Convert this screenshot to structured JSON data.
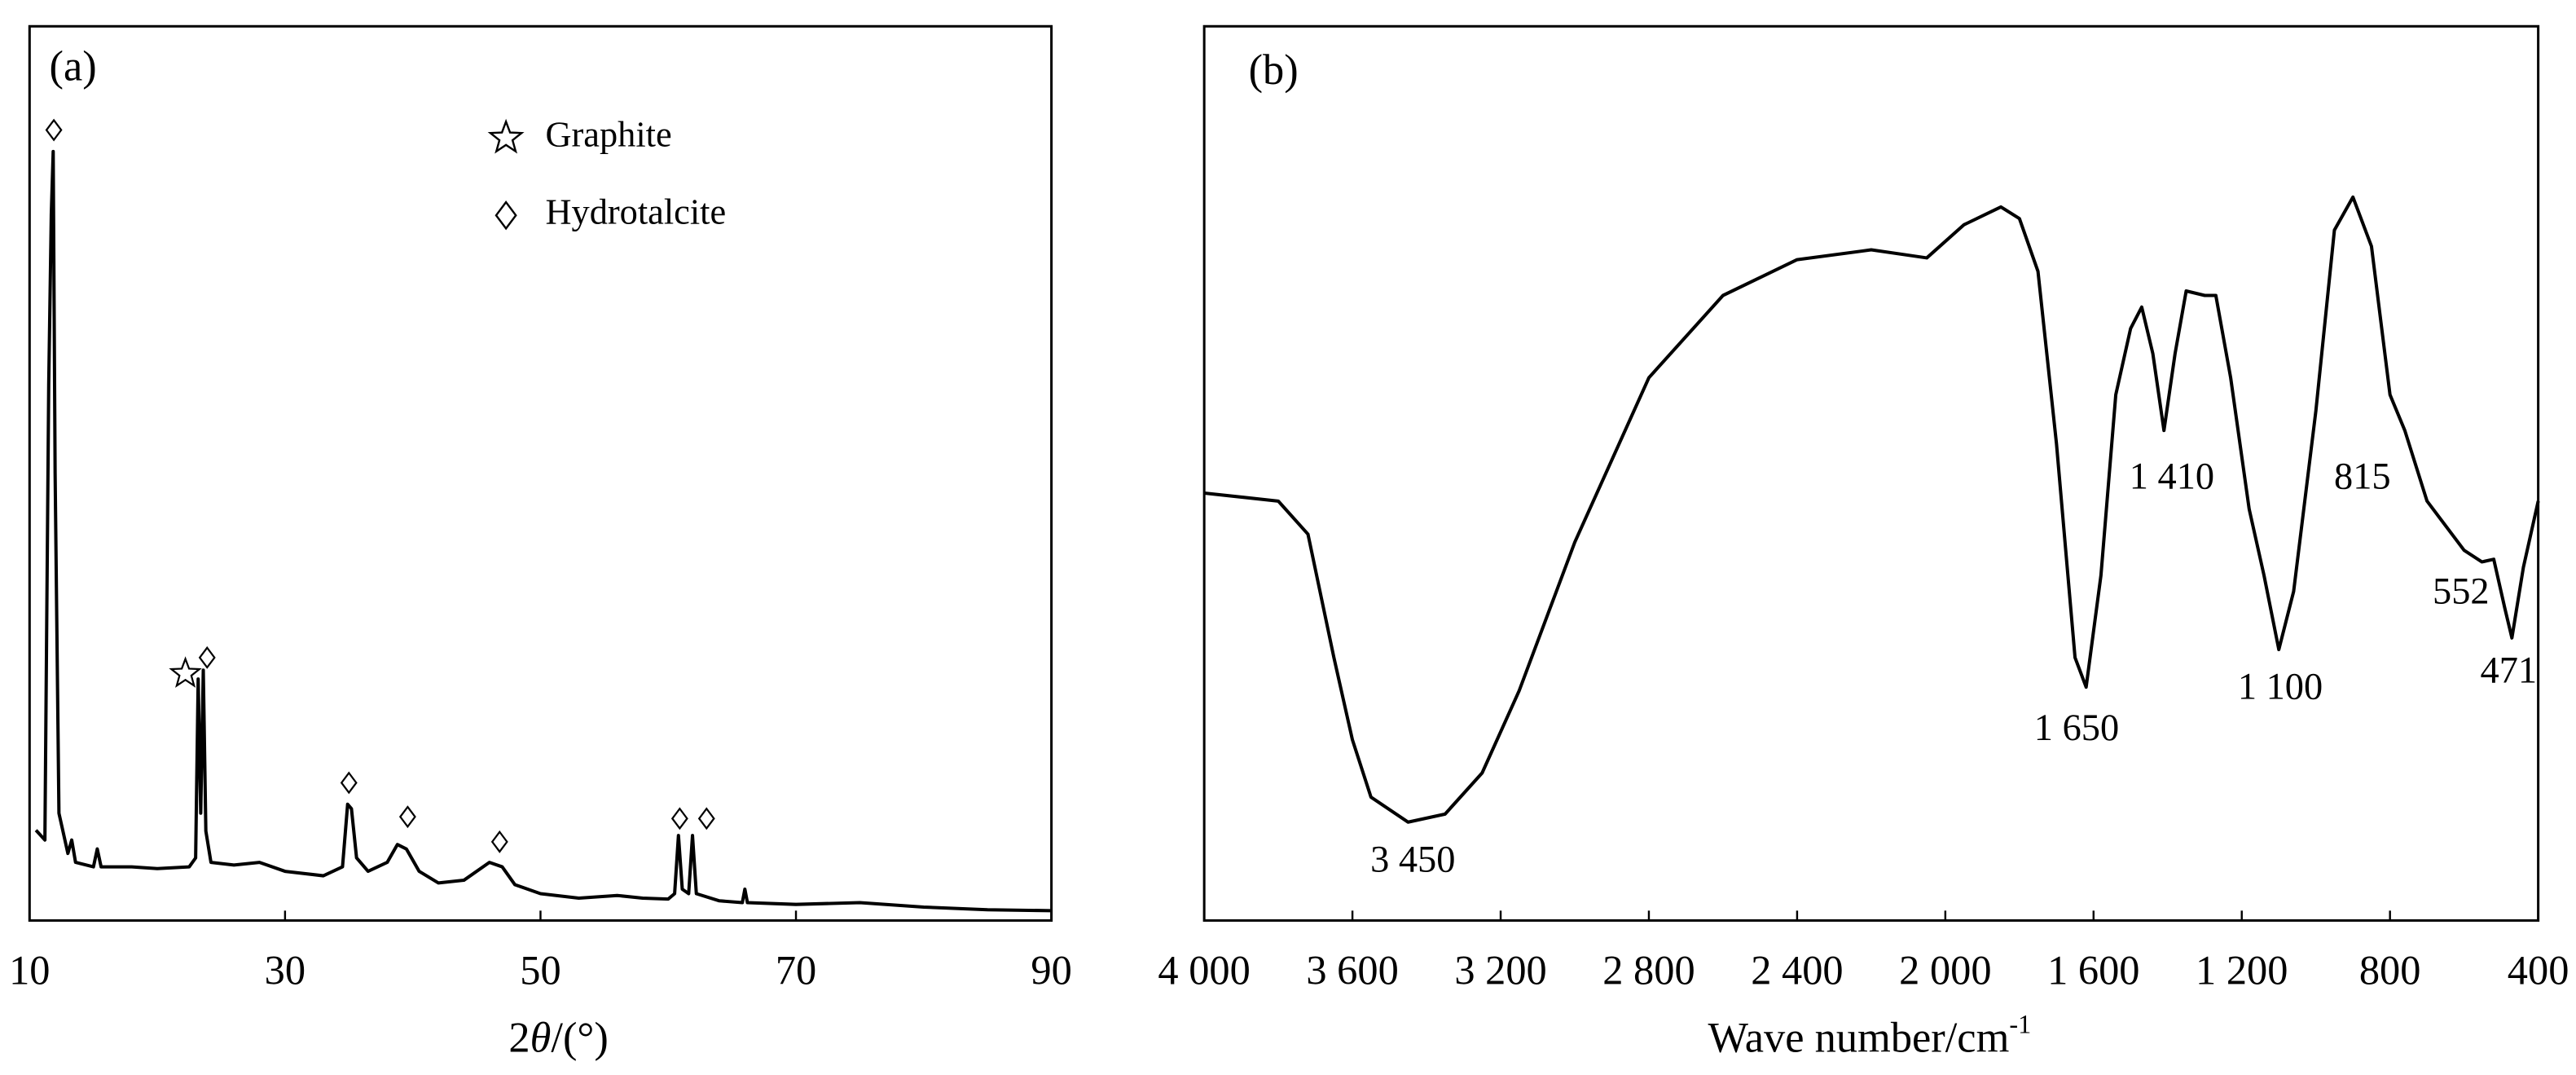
{
  "chart_data": [
    {
      "type": "line",
      "label": "(a)",
      "xlabel_prefix": "2",
      "xlabel_symbol": "θ",
      "xlabel_suffix": "/(°)",
      "xlim": [
        10,
        90
      ],
      "xticks": [
        10,
        30,
        50,
        70,
        90
      ],
      "ylim": [
        0,
        100
      ],
      "legend": [
        {
          "label": "Graphite",
          "marker": "star"
        },
        {
          "label": "Hydrotalcite",
          "marker": "diamond"
        }
      ],
      "legend_position": "upper center",
      "series": [
        {
          "color": "#000000",
          "x": [
            10.5,
            11.2,
            11.5,
            11.7,
            11.85,
            12.0,
            12.3,
            13,
            13.3,
            13.6,
            15,
            15.3,
            15.6,
            18,
            20,
            22.5,
            23.0,
            23.2,
            23.4,
            23.6,
            23.8,
            24.2,
            26,
            28,
            30,
            33,
            34.5,
            34.9,
            35.2,
            35.6,
            36.5,
            38,
            38.8,
            39.5,
            40.5,
            42,
            44,
            46,
            47,
            48,
            50,
            53,
            56,
            58,
            60,
            60.5,
            60.8,
            61.1,
            61.6,
            61.9,
            62.2,
            64,
            65.8,
            66,
            66.2,
            70,
            75,
            80,
            85,
            90
          ],
          "values": [
            10.1,
            9,
            60,
            79,
            86,
            50,
            12,
            7.5,
            9,
            6.5,
            6,
            8,
            6,
            6,
            5.8,
            6,
            7,
            27,
            12,
            28,
            10,
            6.5,
            6.2,
            6.5,
            5.5,
            5,
            6,
            13,
            12.5,
            7,
            5.5,
            6.5,
            8.5,
            8,
            5.5,
            4.2,
            4.5,
            6.5,
            6,
            4,
            3,
            2.5,
            2.8,
            2.5,
            2.4,
            3,
            9.5,
            3.5,
            3,
            9.5,
            3,
            2.2,
            2,
            3.5,
            2,
            1.8,
            2,
            1.5,
            1.2,
            1.1
          ]
        }
      ],
      "annotations": [
        {
          "marker": "diamond",
          "x": 11.9,
          "y": 88.4
        },
        {
          "marker": "star",
          "x": 22.2,
          "y": 27.6
        },
        {
          "marker": "diamond",
          "x": 23.9,
          "y": 29.4
        },
        {
          "marker": "diamond",
          "x": 35.0,
          "y": 15.4
        },
        {
          "marker": "diamond",
          "x": 39.6,
          "y": 11.6
        },
        {
          "marker": "diamond",
          "x": 46.8,
          "y": 8.8
        },
        {
          "marker": "diamond",
          "x": 60.9,
          "y": 11.4
        },
        {
          "marker": "diamond",
          "x": 63.0,
          "y": 11.4
        }
      ]
    },
    {
      "type": "line",
      "label": "(b)",
      "xlabel": "Wave number/cm",
      "xlabel_sup": "-1",
      "xlim": [
        4000,
        400
      ],
      "xticks": [
        {
          "value": 4000,
          "label": "4 000"
        },
        {
          "value": 3600,
          "label": "3 600"
        },
        {
          "value": 3200,
          "label": "3 200"
        },
        {
          "value": 2800,
          "label": "2 800"
        },
        {
          "value": 2400,
          "label": "2 400"
        },
        {
          "value": 2000,
          "label": "2 000"
        },
        {
          "value": 1600,
          "label": "1 600"
        },
        {
          "value": 1200,
          "label": "1 200"
        },
        800,
        400
      ],
      "ylim": [
        0,
        100
      ],
      "series": [
        {
          "color": "#000000",
          "x": [
            4000,
            3800,
            3720,
            3650,
            3600,
            3550,
            3450,
            3350,
            3250,
            3150,
            3000,
            2800,
            2600,
            2400,
            2200,
            2050,
            1950,
            1850,
            1800,
            1750,
            1700,
            1650,
            1620,
            1580,
            1540,
            1500,
            1470,
            1440,
            1410,
            1380,
            1350,
            1300,
            1270,
            1230,
            1180,
            1140,
            1100,
            1060,
            1000,
            950,
            900,
            850,
            800,
            760,
            700,
            600,
            552,
            520,
            490,
            471,
            440,
            400
          ],
          "values": [
            47.8,
            46.9,
            43.2,
            29.4,
            20.2,
            13.8,
            11.0,
            11.9,
            16.5,
            25.7,
            42.3,
            60.7,
            69.9,
            73.9,
            75.0,
            74.1,
            77.8,
            79.8,
            78.5,
            72.6,
            53.3,
            29.4,
            26.1,
            38.6,
            58.8,
            66.2,
            68.6,
            63.4,
            54.8,
            63.4,
            70.4,
            69.9,
            69.9,
            60.7,
            46.0,
            38.6,
            30.3,
            36.8,
            57.0,
            77.2,
            80.9,
            75.4,
            58.8,
            54.8,
            46.9,
            41.4,
            40.1,
            40.4,
            34.9,
            31.6,
            39.5,
            46.9
          ]
        }
      ],
      "annotations": [
        {
          "text": "3 450"
        },
        {
          "text": "1 650"
        },
        {
          "text": "1 410"
        },
        {
          "text": "1 100"
        },
        {
          "text": "815"
        },
        {
          "text": "552"
        },
        {
          "text": "471"
        }
      ]
    }
  ]
}
